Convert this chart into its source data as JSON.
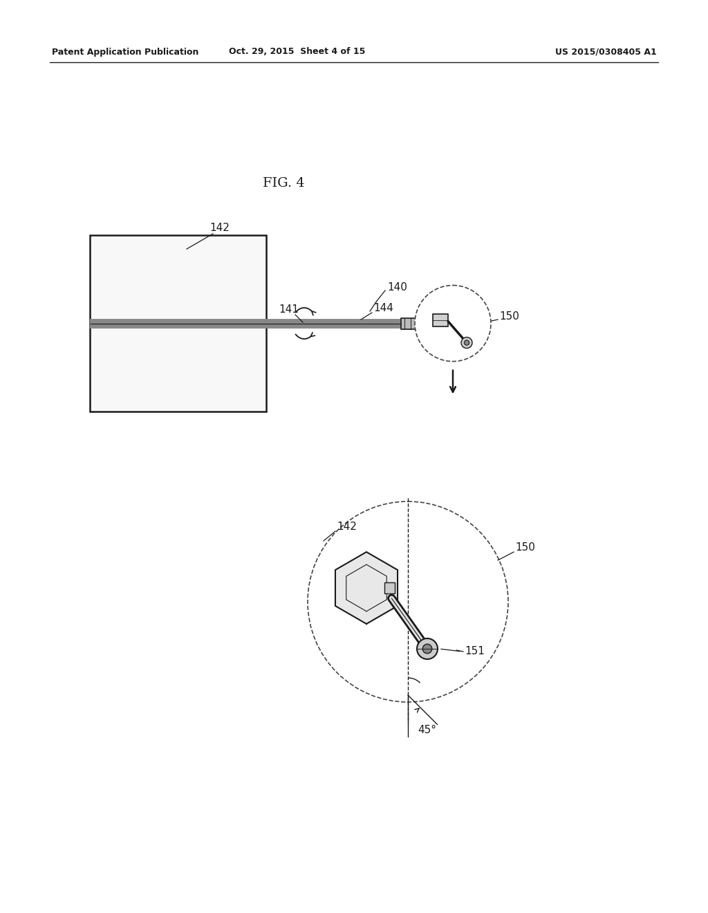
{
  "background_color": "#ffffff",
  "header_left": "Patent Application Publication",
  "header_mid": "Oct. 29, 2015  Sheet 4 of 15",
  "header_right": "US 2015/0308405 A1",
  "fig_label": "FIG. 4",
  "angle_label": "45°",
  "line_color": "#1a1a1a",
  "dashed_color": "#444444",
  "shaft_color": "#888888",
  "fig_w": 10.24,
  "fig_h": 13.2
}
